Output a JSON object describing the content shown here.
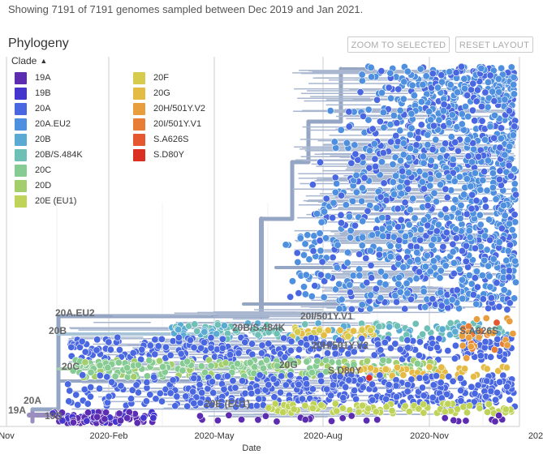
{
  "header": {
    "summary": "Showing 7191 of 7191 genomes sampled between Dec 2019 and Jan 2021."
  },
  "panel": {
    "title": "Phylogeny",
    "zoom_button": "ZOOM TO SELECTED",
    "reset_button": "RESET LAYOUT"
  },
  "legend": {
    "title": "Clade",
    "items": [
      {
        "label": "19A",
        "color": "#5c2cb1"
      },
      {
        "label": "19B",
        "color": "#4535cf"
      },
      {
        "label": "20A",
        "color": "#4a67e2"
      },
      {
        "label": "20A.EU2",
        "color": "#4e8fe0"
      },
      {
        "label": "20B",
        "color": "#5aaad4"
      },
      {
        "label": "20B/S.484K",
        "color": "#6ebfb6"
      },
      {
        "label": "20C",
        "color": "#86cb92"
      },
      {
        "label": "20D",
        "color": "#a2cf6c"
      },
      {
        "label": "20E (EU1)",
        "color": "#bed358"
      },
      {
        "label": "20F",
        "color": "#d6cb4d"
      },
      {
        "label": "20G",
        "color": "#e4bb45"
      },
      {
        "label": "20H/501Y.V2",
        "color": "#e99e3e"
      },
      {
        "label": "20I/501Y.V1",
        "color": "#e87d36"
      },
      {
        "label": "S.A626S",
        "color": "#e4572f"
      },
      {
        "label": "S.D80Y",
        "color": "#dc2f24"
      }
    ]
  },
  "axis": {
    "title": "Date",
    "ticks": [
      "Nov",
      "2020-Feb",
      "2020-May",
      "2020-Aug",
      "2020-Nov",
      "202"
    ]
  },
  "tree_labels": [
    "19A",
    "19B",
    "20A",
    "20A.EU2",
    "20B",
    "20C",
    "20B/S.484K",
    "20I/501Y.V1",
    "20H/501Y.V2",
    "20G",
    "S.D80Y",
    "S.A626S",
    "20E (EU1)"
  ]
}
